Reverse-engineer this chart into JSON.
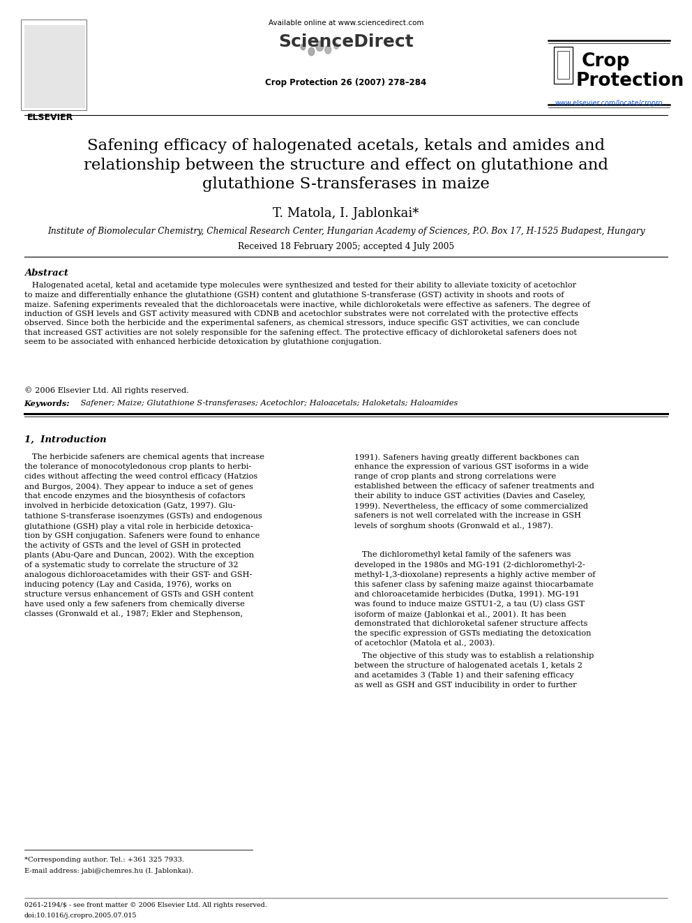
{
  "bg_color": "#ffffff",
  "header_available_online": "Available online at www.sciencedirect.com",
  "header_journal": "Crop Protection 26 (2007) 278–284",
  "journal_url": "www.elsevier.com/locate/cropro",
  "title_line1": "Safening efficacy of halogenated acetals, ketals and amides and",
  "title_line2": "relationship between the structure and effect on glutathione and",
  "title_line3": "glutathione S-transferases in maize",
  "authors": "T. Matola, I. Jablonkai*",
  "affiliation": "Institute of Biomolecular Chemistry, Chemical Research Center, Hungarian Academy of Sciences, P.O. Box 17, H-1525 Budapest, Hungary",
  "received": "Received 18 February 2005; accepted 4 July 2005",
  "abstract_title": "Abstract",
  "abstract_indent": "   Halogenated acetal, ketal and acetamide type molecules were synthesized and tested for their ability to alleviate toxicity of acetochlor\nto maize and differentially enhance the glutathione (GSH) content and glutathione S-transferase (GST) activity in shoots and roots of\nmaize. Safening experiments revealed that the dichloroacetals were inactive, while dichloroketals were effective as safeners. The degree of\ninduction of GSH levels and GST activity measured with CDNB and acetochlor substrates were not correlated with the protective effects\nobserved. Since both the herbicide and the experimental safeners, as chemical stressors, induce specific GST activities, we can conclude\nthat increased GST activities are not solely responsible for the safening effect. The protective efficacy of dichloroketal safeners does not\nseem to be associated with enhanced herbicide detoxication by glutathione conjugation.",
  "copyright": "© 2006 Elsevier Ltd. All rights reserved.",
  "keywords_label": "Keywords:",
  "keywords": " Safener; Maize; Glutathione S-transferases; Acetochlor; Haloacetals; Haloketals; Haloamides",
  "section1_title": "1,  Introduction",
  "col1_text": "   The herbicide safeners are chemical agents that increase\nthe tolerance of monocotyledonous crop plants to herbi-\ncides without affecting the weed control efficacy (Hatzios\nand Burgos, 2004). They appear to induce a set of genes\nthat encode enzymes and the biosynthesis of cofactors\ninvolved in herbicide detoxication (Gatz, 1997). Glu-\ntathione S-transferase isoenzymes (GSTs) and endogenous\nglutathione (GSH) play a vital role in herbicide detoxica-\ntion by GSH conjugation. Safeners were found to enhance\nthe activity of GSTs and the level of GSH in protected\nplants (Abu-Qare and Duncan, 2002). With the exception\nof a systematic study to correlate the structure of 32\nanalogous dichloroacetamides with their GST- and GSH-\ninducing potency (Lay and Casida, 1976), works on\nstructure versus enhancement of GSTs and GSH content\nhave used only a few safeners from chemically diverse\nclasses (Gronwald et al., 1987; Ekler and Stephenson,",
  "col2_text1": "1991). Safeners having greatly different backbones can\nenhance the expression of various GST isoforms in a wide\nrange of crop plants and strong correlations were\nestablished between the efficacy of safener treatments and\ntheir ability to induce GST activities (Davies and Caseley,\n1999). Nevertheless, the efficacy of some commercialized\nsafeners is not well correlated with the increase in GSH\nlevels of sorghum shoots (Gronwald et al., 1987).",
  "col2_text2": "   The dichloromethyl ketal family of the safeners was\ndeveloped in the 1980s and MG-191 (2-dichloromethyl-2-\nmethyl-1,3-dioxolane) represents a highly active member of\nthis safener class by safening maize against thiocarbamate\nand chloroacetamide herbicides (Dutka, 1991). MG-191\nwas found to induce maize GSTU1-2, a tau (U) class GST\nisoform of maize (Jablonkai et al., 2001). It has been\ndemonstrated that dichloroketal safener structure affects\nthe specific expression of GSTs mediating the detoxication\nof acetochlor (Matola et al., 2003).",
  "col2_text3": "   The objective of this study was to establish a relationship\nbetween the structure of halogenated acetals 1, ketals 2\nand acetamides 3 (Table 1) and their safening efficacy\nas well as GSH and GST inducibility in order to further",
  "footnote_star": "*Corresponding author. Tel.: +361 325 7933.",
  "footnote_email": "E-mail address: jabi@chemres.hu (I. Jablonkai).",
  "footer_issn": "0261-2194/$ - see front matter © 2006 Elsevier Ltd. All rights reserved.",
  "footer_doi": "doi:10.1016/j.cropro.2005.07.015",
  "link_color": "#1155CC",
  "title_fontsize": 16.5,
  "author_fontsize": 13,
  "affil_fontsize": 8.8,
  "received_fontsize": 8.8,
  "abstract_title_fontsize": 9.5,
  "abstract_text_fontsize": 8.2,
  "body_fontsize": 8.2,
  "section_title_fontsize": 9.5,
  "header_fontsize": 7.5,
  "journal_line_fontsize": 8.5,
  "sd_logo_fontsize": 18,
  "crop_fontsize": 19,
  "elsevier_fontsize": 9
}
